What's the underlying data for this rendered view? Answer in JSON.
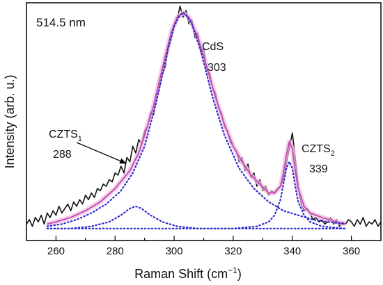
{
  "chart_data": {
    "type": "line",
    "title": "514.5 nm",
    "xlabel": "Raman Shift (cm",
    "xlabel_sup": "−1",
    "xlabel_close": ")",
    "ylabel": "Intensity (arb. u.)",
    "xlim": [
      250,
      370
    ],
    "ylim": [
      0,
      1.05
    ],
    "xticks": [
      260,
      280,
      300,
      320,
      340,
      360
    ],
    "grid": false,
    "legend": "none",
    "colors": {
      "measured": "#111111",
      "fit": "#c04aa8",
      "fit_glow": "#f0b8e4",
      "components": "#2a2ad0"
    },
    "series": [
      {
        "style": "solid-black",
        "x": [
          250,
          251,
          252,
          253,
          254,
          255,
          256,
          257,
          258,
          259,
          260,
          261,
          262,
          263,
          264,
          265,
          266,
          267,
          268,
          269,
          270,
          271,
          272,
          273,
          274,
          275,
          276,
          277,
          278,
          279,
          280,
          281,
          282,
          283,
          284,
          285,
          286,
          287,
          288,
          289,
          290,
          291,
          292,
          293,
          294,
          295,
          296,
          297,
          298,
          299,
          300,
          301,
          302,
          303,
          304,
          305,
          306,
          307,
          308,
          309,
          310,
          311,
          312,
          313,
          314,
          315,
          316,
          317,
          318,
          319,
          320,
          321,
          322,
          323,
          324,
          325,
          326,
          327,
          328,
          329,
          330,
          331,
          332,
          333,
          334,
          335,
          336,
          337,
          338,
          339,
          340,
          341,
          342,
          343,
          344,
          345,
          346,
          347,
          348,
          349,
          350,
          351,
          352,
          353,
          354,
          355,
          356,
          357,
          358,
          359,
          360,
          361,
          362,
          363,
          364,
          365,
          366,
          367,
          368,
          369,
          370
        ],
        "y": [
          0.03,
          0.05,
          0.02,
          0.06,
          0.04,
          0.07,
          0.03,
          0.08,
          0.06,
          0.09,
          0.07,
          0.11,
          0.08,
          0.1,
          0.12,
          0.09,
          0.13,
          0.11,
          0.14,
          0.12,
          0.16,
          0.14,
          0.17,
          0.15,
          0.19,
          0.18,
          0.21,
          0.2,
          0.23,
          0.22,
          0.26,
          0.25,
          0.29,
          0.26,
          0.33,
          0.31,
          0.38,
          0.35,
          0.41,
          0.39,
          0.45,
          0.47,
          0.53,
          0.52,
          0.6,
          0.64,
          0.7,
          0.74,
          0.82,
          0.86,
          0.92,
          0.95,
          1.01,
          0.96,
          0.99,
          0.93,
          0.95,
          0.87,
          0.89,
          0.8,
          0.82,
          0.72,
          0.71,
          0.64,
          0.62,
          0.55,
          0.53,
          0.47,
          0.45,
          0.4,
          0.38,
          0.36,
          0.31,
          0.33,
          0.27,
          0.3,
          0.24,
          0.26,
          0.2,
          0.23,
          0.18,
          0.2,
          0.16,
          0.18,
          0.17,
          0.19,
          0.2,
          0.23,
          0.3,
          0.37,
          0.44,
          0.33,
          0.2,
          0.12,
          0.09,
          0.1,
          0.08,
          0.05,
          0.06,
          0.04,
          0.05,
          0.03,
          0.04,
          0.06,
          0.03,
          0.05,
          0.02,
          0.04,
          0.03,
          0.05,
          0.04,
          0.02,
          0.05,
          0.03,
          0.06,
          0.02,
          0.04,
          0.03,
          0.05,
          0.02,
          0.04
        ]
      },
      {
        "style": "solid-magenta",
        "x": [
          257,
          260,
          265,
          270,
          275,
          280,
          285,
          288,
          290,
          293,
          296,
          299,
          301,
          303,
          305,
          308,
          311,
          314,
          317,
          320,
          323,
          326,
          329,
          332,
          334,
          336,
          337,
          338,
          339,
          340,
          341,
          342,
          344,
          346,
          350,
          355,
          358
        ],
        "y": [
          0.03,
          0.04,
          0.06,
          0.09,
          0.13,
          0.19,
          0.27,
          0.35,
          0.43,
          0.56,
          0.73,
          0.89,
          0.96,
          0.98,
          0.96,
          0.87,
          0.74,
          0.6,
          0.48,
          0.38,
          0.31,
          0.25,
          0.21,
          0.17,
          0.17,
          0.2,
          0.26,
          0.34,
          0.4,
          0.37,
          0.27,
          0.19,
          0.11,
          0.08,
          0.06,
          0.04,
          0.03
        ]
      },
      {
        "style": "dotted-blue",
        "x": [
          257,
          262,
          267,
          272,
          277,
          282,
          286,
          290,
          294,
          298,
          300,
          302,
          303,
          304,
          306,
          309,
          313,
          317,
          322,
          327,
          332,
          337,
          342,
          347,
          352,
          358
        ],
        "y": [
          0.02,
          0.03,
          0.05,
          0.08,
          0.12,
          0.18,
          0.26,
          0.38,
          0.58,
          0.82,
          0.92,
          0.97,
          0.98,
          0.97,
          0.93,
          0.81,
          0.6,
          0.43,
          0.28,
          0.19,
          0.13,
          0.09,
          0.07,
          0.05,
          0.04,
          0.03
        ]
      },
      {
        "style": "dotted-blue",
        "x": [
          257,
          265,
          272,
          278,
          282,
          285,
          287,
          289,
          292,
          296,
          301,
          308,
          318,
          330,
          345,
          358
        ],
        "y": [
          0.01,
          0.01,
          0.02,
          0.04,
          0.07,
          0.1,
          0.11,
          0.1,
          0.07,
          0.04,
          0.02,
          0.01,
          0.01,
          0.01,
          0.01,
          0.01
        ]
      },
      {
        "style": "dotted-blue",
        "x": [
          257,
          300,
          320,
          328,
          332,
          334,
          336,
          337,
          338,
          339,
          340,
          341,
          342,
          344,
          346,
          350,
          358
        ],
        "y": [
          0.01,
          0.01,
          0.01,
          0.02,
          0.04,
          0.07,
          0.14,
          0.21,
          0.28,
          0.31,
          0.28,
          0.2,
          0.13,
          0.07,
          0.04,
          0.02,
          0.01
        ]
      }
    ],
    "annotations": {
      "cds": {
        "name": "CdS",
        "value": "303"
      },
      "czts1": {
        "name": "CZTS",
        "sub": "1",
        "value": "288"
      },
      "czts2": {
        "name": "CZTS",
        "sub": "2",
        "value": "339"
      }
    }
  }
}
